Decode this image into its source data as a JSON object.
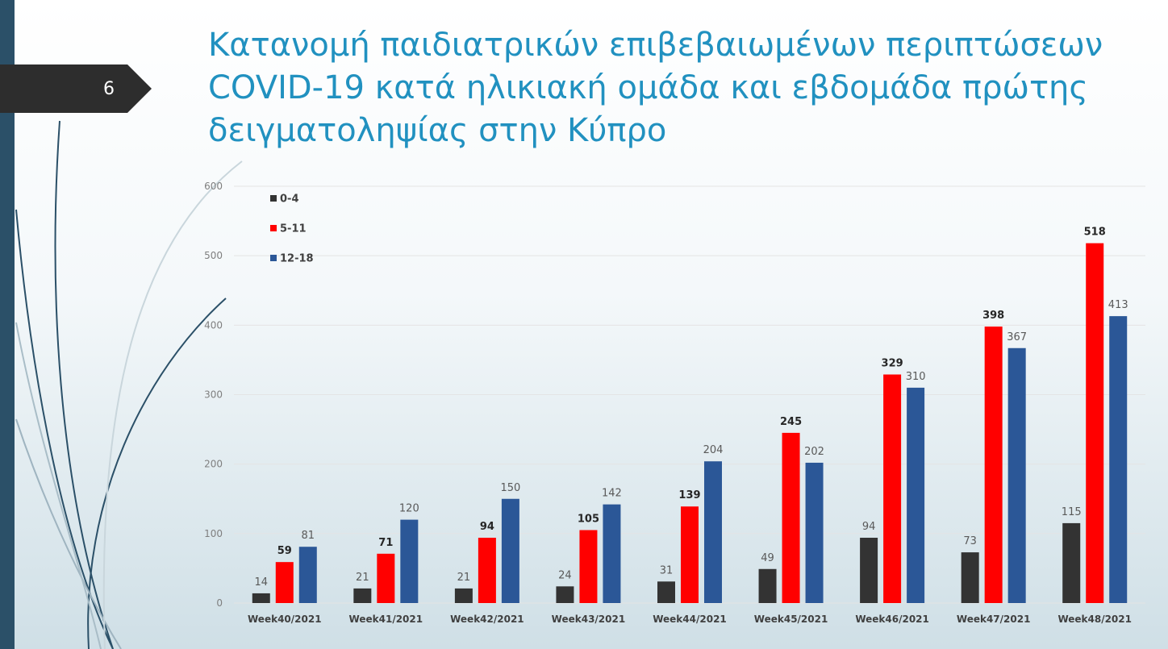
{
  "slide_number": "6",
  "chart_data": {
    "type": "bar",
    "title": "Κατανομή παιδιατρικών επιβεβαιωμένων περιπτώσεων COVID-19 κατά ηλικιακή ομάδα και εβδομάδα πρώτης δειγματοληψίας στην Κύπρο",
    "categories": [
      "Week40/2021",
      "Week41/2021",
      "Week42/2021",
      "Week43/2021",
      "Week44/2021",
      "Week45/2021",
      "Week46/2021",
      "Week47/2021",
      "Week48/2021"
    ],
    "series": [
      {
        "name": "0-4",
        "color": "#333333",
        "values": [
          14,
          21,
          21,
          24,
          31,
          49,
          94,
          73,
          115
        ]
      },
      {
        "name": "5-11",
        "color": "#ff0000",
        "values": [
          59,
          71,
          94,
          105,
          139,
          245,
          329,
          398,
          518
        ]
      },
      {
        "name": "12-18",
        "color": "#2b5797",
        "values": [
          81,
          120,
          150,
          142,
          204,
          202,
          310,
          367,
          413
        ]
      }
    ],
    "ylim": [
      0,
      600
    ],
    "yticks": [
      0,
      100,
      200,
      300,
      400,
      500,
      600
    ],
    "grid": true,
    "legend": "top-left",
    "data_labels": true
  }
}
